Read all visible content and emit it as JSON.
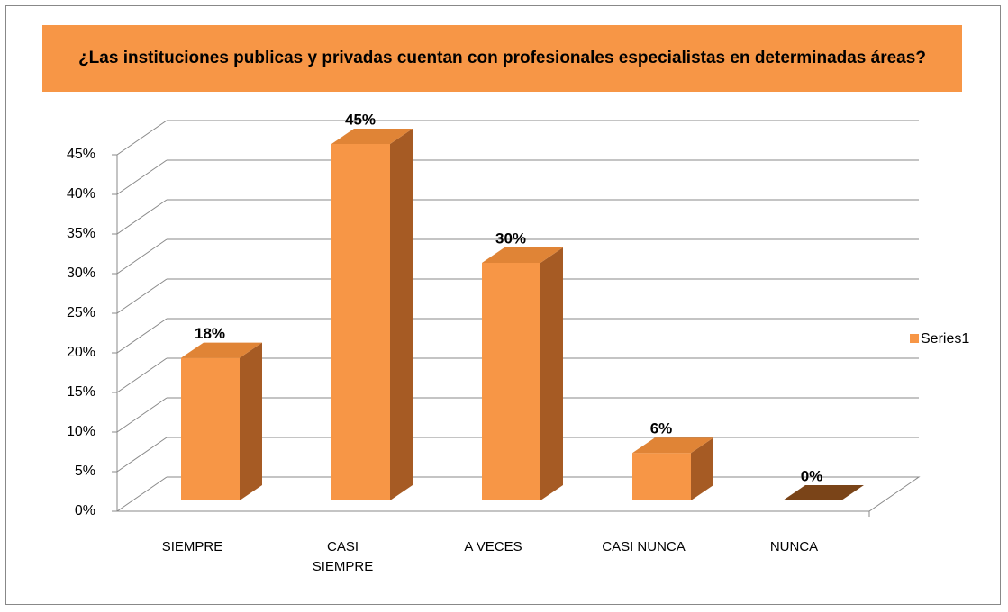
{
  "chart_data": {
    "type": "bar3d",
    "title": "¿Las instituciones publicas y privadas cuentan con profesionales especialistas en determinadas áreas?",
    "categories": [
      "SIEMPRE",
      "CASI SIEMPRE",
      "A VECES",
      "CASI NUNCA",
      "NUNCA"
    ],
    "series": [
      {
        "name": "Series1",
        "color": "#f79646",
        "values": [
          18,
          45,
          30,
          6,
          0
        ],
        "value_labels": [
          "18%",
          "45%",
          "30%",
          "6%",
          "0%"
        ]
      }
    ],
    "ylim": [
      0,
      45
    ],
    "yticks": [
      {
        "value": 0,
        "label": "0%"
      },
      {
        "value": 5,
        "label": "5%"
      },
      {
        "value": 10,
        "label": "10%"
      },
      {
        "value": 15,
        "label": "15%"
      },
      {
        "value": 20,
        "label": "20%"
      },
      {
        "value": 25,
        "label": "25%"
      },
      {
        "value": 30,
        "label": "30%"
      },
      {
        "value": 35,
        "label": "35%"
      },
      {
        "value": 40,
        "label": "40%"
      },
      {
        "value": 45,
        "label": "45%"
      }
    ],
    "grid": true,
    "legend": "right"
  }
}
